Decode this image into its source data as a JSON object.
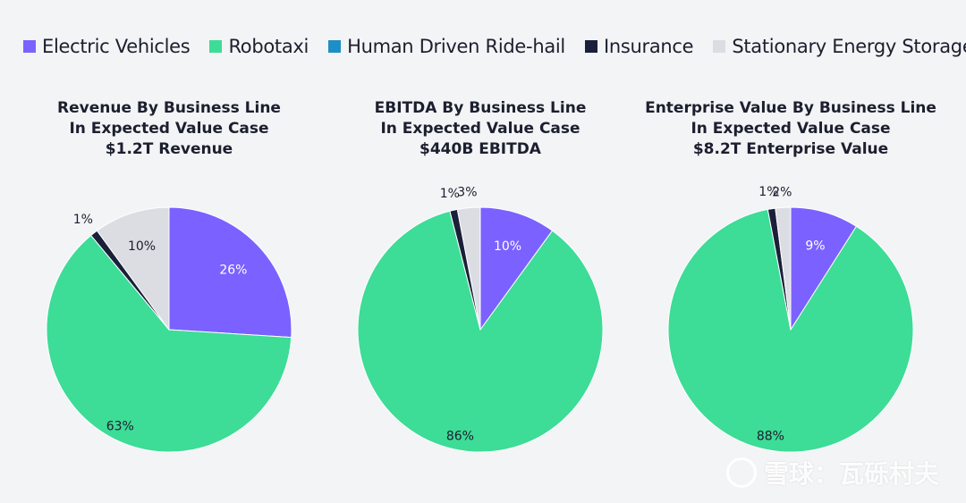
{
  "legend": [
    {
      "label": "Electric Vehicles",
      "color": "#7b61ff"
    },
    {
      "label": "Robotaxi",
      "color": "#3ddc97"
    },
    {
      "label": "Human Driven Ride-hail",
      "color": "#1e8fc4"
    },
    {
      "label": "Insurance",
      "color": "#1b1f3a"
    },
    {
      "label": "Stationary Energy Storage",
      "color": "#dcdde3"
    }
  ],
  "watermark": "雪球：瓦砾村夫",
  "chart_data": [
    {
      "type": "pie",
      "title": [
        "Revenue By Business Line",
        "In Expected Value Case",
        "$1.2T Revenue"
      ],
      "slices": [
        {
          "name": "Electric Vehicles",
          "value": 26,
          "label": "26%"
        },
        {
          "name": "Robotaxi",
          "value": 63,
          "label": "63%"
        },
        {
          "name": "Human Driven Ride-hail",
          "value": 0,
          "label": ""
        },
        {
          "name": "Insurance",
          "value": 1,
          "label": "1%"
        },
        {
          "name": "Stationary Energy Storage",
          "value": 10,
          "label": "10%"
        }
      ]
    },
    {
      "type": "pie",
      "title": [
        "EBITDA By Business Line",
        "In Expected Value Case",
        "$440B EBITDA"
      ],
      "slices": [
        {
          "name": "Electric Vehicles",
          "value": 10,
          "label": "10%"
        },
        {
          "name": "Robotaxi",
          "value": 86,
          "label": "86%"
        },
        {
          "name": "Human Driven Ride-hail",
          "value": 0,
          "label": ""
        },
        {
          "name": "Insurance",
          "value": 1,
          "label": "1%"
        },
        {
          "name": "Stationary Energy Storage",
          "value": 3,
          "label": "3%"
        }
      ]
    },
    {
      "type": "pie",
      "title": [
        "Enterprise Value By Business Line",
        "In Expected Value Case",
        "$8.2T Enterprise Value"
      ],
      "slices": [
        {
          "name": "Electric Vehicles",
          "value": 9,
          "label": "9%"
        },
        {
          "name": "Robotaxi",
          "value": 88,
          "label": "88%"
        },
        {
          "name": "Human Driven Ride-hail",
          "value": 0,
          "label": ""
        },
        {
          "name": "Insurance",
          "value": 1,
          "label": "1%"
        },
        {
          "name": "Stationary Energy Storage",
          "value": 2,
          "label": "2%"
        }
      ]
    }
  ]
}
